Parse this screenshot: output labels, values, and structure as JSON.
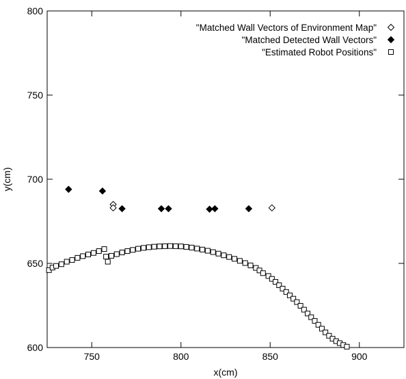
{
  "chart_data": {
    "type": "scatter",
    "xlabel": "x(cm)",
    "ylabel": "y(cm)",
    "xlim": [
      725,
      925
    ],
    "ylim": [
      600,
      800
    ],
    "x_ticks": [
      750,
      800,
      850,
      900
    ],
    "y_ticks": [
      600,
      650,
      700,
      750,
      800
    ],
    "grid": false,
    "legend_position": "top-right",
    "series": [
      {
        "name": "\"Matched Wall Vectors of Environment Map\"",
        "marker": "open-diamond",
        "points": [
          [
            762,
            685
          ],
          [
            762,
            683
          ],
          [
            851,
            683
          ]
        ]
      },
      {
        "name": "\"Matched Detected Wall Vectors\"",
        "marker": "filled-diamond",
        "points": [
          [
            737,
            694
          ],
          [
            756,
            693
          ],
          [
            767,
            682.5
          ],
          [
            789,
            682.5
          ],
          [
            793,
            682.5
          ],
          [
            816,
            682.2
          ],
          [
            819,
            682.5
          ],
          [
            838,
            682.5
          ]
        ]
      },
      {
        "name": "\"Estimated Robot Positions\"",
        "marker": "open-square",
        "points": [
          [
            726,
            646
          ],
          [
            728,
            647.5
          ],
          [
            730,
            648.5
          ],
          [
            733,
            649.5
          ],
          [
            736,
            651
          ],
          [
            739,
            652
          ],
          [
            742,
            653.3
          ],
          [
            745,
            654.3
          ],
          [
            748,
            655.3
          ],
          [
            751,
            656.2
          ],
          [
            754,
            657.3
          ],
          [
            757,
            658.5
          ],
          [
            759,
            651
          ],
          [
            758,
            654
          ],
          [
            761,
            654.5
          ],
          [
            764,
            655.5
          ],
          [
            767,
            656.5
          ],
          [
            770,
            657.3
          ],
          [
            773,
            658
          ],
          [
            776,
            658.7
          ],
          [
            779,
            659.2
          ],
          [
            782,
            659.6
          ],
          [
            785,
            659.9
          ],
          [
            788,
            660.1
          ],
          [
            791,
            660.2
          ],
          [
            794,
            660.3
          ],
          [
            797,
            660.2
          ],
          [
            800,
            660.1
          ],
          [
            803,
            659.8
          ],
          [
            806,
            659.4
          ],
          [
            809,
            658.8
          ],
          [
            812,
            658.2
          ],
          [
            815,
            657.5
          ],
          [
            818,
            656.7
          ],
          [
            821,
            655.8
          ],
          [
            824,
            654.8
          ],
          [
            827,
            653.8
          ],
          [
            830,
            652.7
          ],
          [
            833,
            651.5
          ],
          [
            836,
            650.2
          ],
          [
            839,
            648.8
          ],
          [
            842,
            647.3
          ],
          [
            844,
            645.8
          ],
          [
            846,
            644.2
          ],
          [
            849,
            642.5
          ],
          [
            851,
            640.8
          ],
          [
            853,
            639
          ],
          [
            855,
            637
          ],
          [
            857,
            635
          ],
          [
            859,
            633
          ],
          [
            861,
            631
          ],
          [
            863,
            629
          ],
          [
            865,
            627
          ],
          [
            867,
            624.8
          ],
          [
            869,
            622.5
          ],
          [
            871,
            620.2
          ],
          [
            873,
            618
          ],
          [
            875,
            615.8
          ],
          [
            877,
            613.5
          ],
          [
            879,
            611.2
          ],
          [
            881,
            609
          ],
          [
            883,
            607
          ],
          [
            885,
            605.2
          ],
          [
            887,
            603.8
          ],
          [
            889,
            602.6
          ],
          [
            891,
            601.5
          ],
          [
            893,
            600.5
          ]
        ]
      }
    ]
  }
}
